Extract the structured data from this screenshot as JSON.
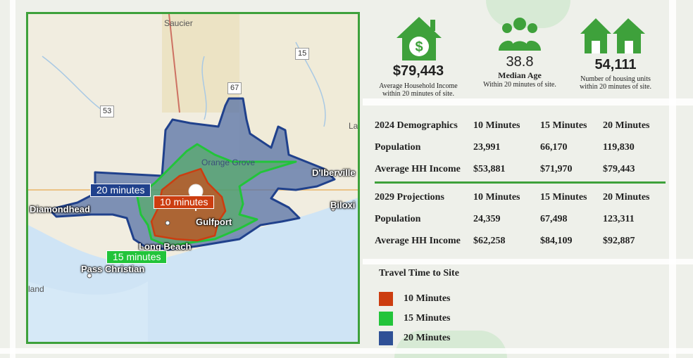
{
  "map": {
    "towns": [
      {
        "name": "Saucier"
      },
      {
        "name": "Orange Grove"
      },
      {
        "name": "Lat"
      },
      {
        "name": "land"
      }
    ],
    "cities": [
      {
        "name": "D'Iberville"
      },
      {
        "name": "Biloxi"
      },
      {
        "name": "Diamondhead"
      },
      {
        "name": "Gulfport"
      },
      {
        "name": "Long Beach"
      },
      {
        "name": "Pass Christian"
      }
    ],
    "highways": [
      "15",
      "67",
      "53"
    ],
    "isochrone_labels": {
      "twenty": "20 minutes",
      "ten": "10 minutes",
      "fifteen": "15 minutes"
    }
  },
  "stats": [
    {
      "icon": "house-dollar-icon",
      "value": "$79,443",
      "label": "Average Household Income within 20 minutes of site."
    },
    {
      "icon": "people-group-icon",
      "value": "38.8",
      "sublabel": "Median Age",
      "label": "Within 20 minutes of site."
    },
    {
      "icon": "houses-icon",
      "value": "54,111",
      "label": "Number of housing units within 20 minutes of site."
    }
  ],
  "table_2024": {
    "header": [
      "2024 Demographics",
      "10 Minutes",
      "15 Minutes",
      "20 Minutes"
    ],
    "rows": [
      [
        "Population",
        "23,991",
        "66,170",
        "119,830"
      ],
      [
        "Average HH Income",
        "$53,881",
        "$71,970",
        "$79,443"
      ]
    ]
  },
  "table_2029": {
    "header": [
      "2029 Projections",
      "10 Minutes",
      "15 Minutes",
      "20 Minutes"
    ],
    "rows": [
      [
        "Population",
        "24,359",
        "67,498",
        "123,311"
      ],
      [
        "Average HH Income",
        "$62,258",
        "$84,109",
        "$92,887"
      ]
    ]
  },
  "legend": {
    "title": "Travel Time to Site",
    "items": [
      {
        "label": "10 Minutes",
        "color": "#cc3d10"
      },
      {
        "label": "15 Minutes",
        "color": "#22c43a"
      },
      {
        "label": "20 Minutes",
        "color": "#2f5096"
      }
    ]
  },
  "colors": {
    "accent": "#3ea13b",
    "icon": "#3ea13b"
  }
}
